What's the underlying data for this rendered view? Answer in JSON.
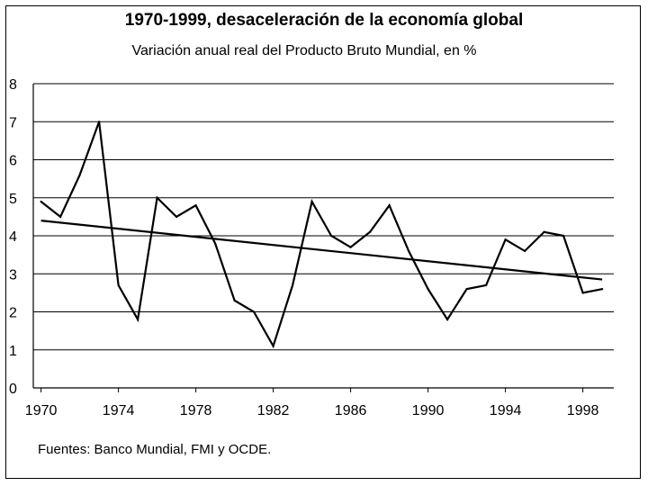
{
  "chart_data": {
    "type": "line",
    "title": "1970-1999, desaceleración de la economía global",
    "subtitle": "Variación anual real del Producto Bruto Mundial, en %",
    "xlabel": "",
    "ylabel": "",
    "x": [
      1970,
      1971,
      1972,
      1973,
      1974,
      1975,
      1976,
      1977,
      1978,
      1979,
      1980,
      1981,
      1982,
      1983,
      1984,
      1985,
      1986,
      1987,
      1988,
      1989,
      1990,
      1991,
      1992,
      1993,
      1994,
      1995,
      1996,
      1997,
      1998,
      1999
    ],
    "series": [
      {
        "values": [
          4.9,
          4.5,
          5.6,
          7.0,
          2.7,
          1.8,
          5.0,
          4.5,
          4.8,
          3.8,
          2.3,
          2.0,
          1.1,
          2.7,
          4.9,
          4.0,
          3.7,
          4.1,
          4.8,
          3.6,
          2.6,
          1.8,
          2.6,
          2.7,
          3.9,
          3.6,
          4.1,
          4.0,
          2.5,
          2.6
        ]
      },
      {
        "x": [
          1970,
          1999
        ],
        "values": [
          4.4,
          2.85
        ]
      }
    ],
    "xticks": [
      "1970",
      "1974",
      "1978",
      "1982",
      "1986",
      "1990",
      "1994",
      "1998"
    ],
    "yticks": [
      "0",
      "1",
      "2",
      "3",
      "4",
      "5",
      "6",
      "7",
      "8"
    ],
    "xlim": [
      1969.6,
      1999.6
    ],
    "ylim": [
      0,
      8
    ],
    "grid": "horizontal",
    "legend": "none",
    "line_color": "#000000",
    "grid_color": "#000000",
    "source_note": "Fuentes: Banco Mundial, FMI y OCDE."
  }
}
